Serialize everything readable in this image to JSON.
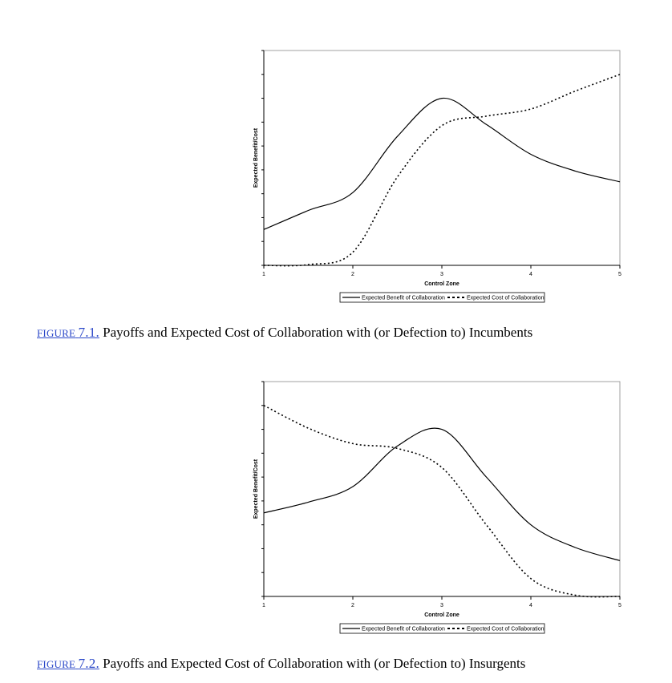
{
  "chart_data": [
    {
      "type": "line",
      "xlabel": "Control Zone",
      "ylabel": "Expected Benefit/Cost",
      "x_ticks": [
        "1",
        "2",
        "3",
        "4",
        "5"
      ],
      "xlim": [
        1,
        5
      ],
      "ylim": [
        0,
        9
      ],
      "y_tick_count": 9,
      "grid": false,
      "legend_position": "bottom",
      "series": [
        {
          "name": "Expected Benefit of Collaboration",
          "style": "solid",
          "x": [
            1,
            1.5,
            2,
            2.5,
            3,
            3.5,
            4,
            4.5,
            5
          ],
          "y": [
            1.5,
            2.3,
            3.05,
            5.4,
            7.0,
            5.9,
            4.65,
            3.95,
            3.5
          ]
        },
        {
          "name": "Expected Cost of Collaboration",
          "style": "dotted",
          "x": [
            1,
            1.5,
            2,
            2.5,
            3,
            3.5,
            4,
            4.5,
            5
          ],
          "y": [
            0.0,
            0.03,
            0.55,
            3.7,
            5.85,
            6.25,
            6.55,
            7.3,
            8.0
          ]
        }
      ]
    },
    {
      "type": "line",
      "xlabel": "Control Zone",
      "ylabel": "Expected Benefit/Cost",
      "x_ticks": [
        "1",
        "2",
        "3",
        "4",
        "5"
      ],
      "xlim": [
        1,
        5
      ],
      "ylim": [
        0,
        9
      ],
      "y_tick_count": 9,
      "grid": false,
      "legend_position": "bottom",
      "series": [
        {
          "name": "Expected Benefit of Collaboration",
          "style": "solid",
          "x": [
            1,
            1.5,
            2,
            2.5,
            3,
            3.5,
            4,
            4.5,
            5
          ],
          "y": [
            3.5,
            3.95,
            4.6,
            6.3,
            7.0,
            5.0,
            3.0,
            2.05,
            1.5
          ]
        },
        {
          "name": "Expected Cost of Collaboration",
          "style": "dotted",
          "x": [
            1,
            1.5,
            2,
            2.5,
            3,
            3.5,
            4,
            4.5,
            5
          ],
          "y": [
            8.0,
            7.05,
            6.4,
            6.2,
            5.4,
            3.0,
            0.75,
            0.05,
            0.0
          ]
        }
      ]
    }
  ],
  "captions": [
    {
      "label": "FIGURE",
      "number": "7.1.",
      "text": " Payoffs and Expected Cost of Collaboration with (or Defection to) Incumbents"
    },
    {
      "label": "FIGURE",
      "number": "7.2.",
      "text": " Payoffs and Expected Cost of Collaboration with (or Defection to) Insurgents"
    }
  ]
}
